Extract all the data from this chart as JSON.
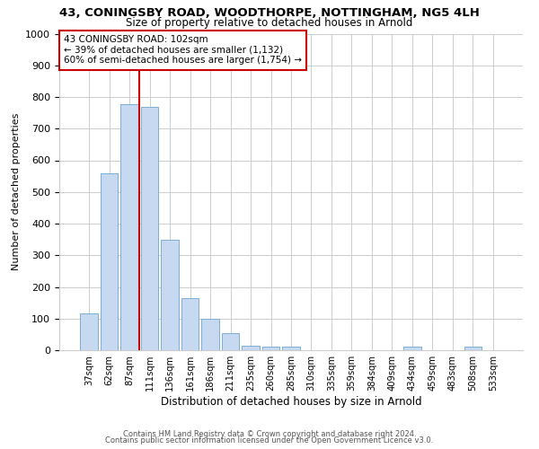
{
  "title_line1": "43, CONINGSBY ROAD, WOODTHORPE, NOTTINGHAM, NG5 4LH",
  "title_line2": "Size of property relative to detached houses in Arnold",
  "xlabel": "Distribution of detached houses by size in Arnold",
  "ylabel": "Number of detached properties",
  "bar_labels": [
    "37sqm",
    "62sqm",
    "87sqm",
    "111sqm",
    "136sqm",
    "161sqm",
    "186sqm",
    "211sqm",
    "235sqm",
    "260sqm",
    "285sqm",
    "310sqm",
    "335sqm",
    "359sqm",
    "384sqm",
    "409sqm",
    "434sqm",
    "459sqm",
    "483sqm",
    "508sqm",
    "533sqm"
  ],
  "bar_values": [
    115,
    560,
    778,
    770,
    348,
    165,
    98,
    55,
    15,
    10,
    10,
    0,
    0,
    0,
    0,
    0,
    10,
    0,
    0,
    10,
    0
  ],
  "bar_color": "#c6d9f0",
  "bar_edge_color": "#7bafd4",
  "property_line_x": 2.5,
  "property_line_color": "#cc0000",
  "annotation_line1": "43 CONINGSBY ROAD: 102sqm",
  "annotation_line2": "← 39% of detached houses are smaller (1,132)",
  "annotation_line3": "60% of semi-detached houses are larger (1,754) →",
  "annotation_box_color": "#ffffff",
  "annotation_box_edge_color": "#cc0000",
  "ylim": [
    0,
    1000
  ],
  "yticks": [
    0,
    100,
    200,
    300,
    400,
    500,
    600,
    700,
    800,
    900,
    1000
  ],
  "background_color": "#ffffff",
  "grid_color": "#cccccc",
  "footer_line1": "Contains HM Land Registry data © Crown copyright and database right 2024.",
  "footer_line2": "Contains public sector information licensed under the Open Government Licence v3.0."
}
